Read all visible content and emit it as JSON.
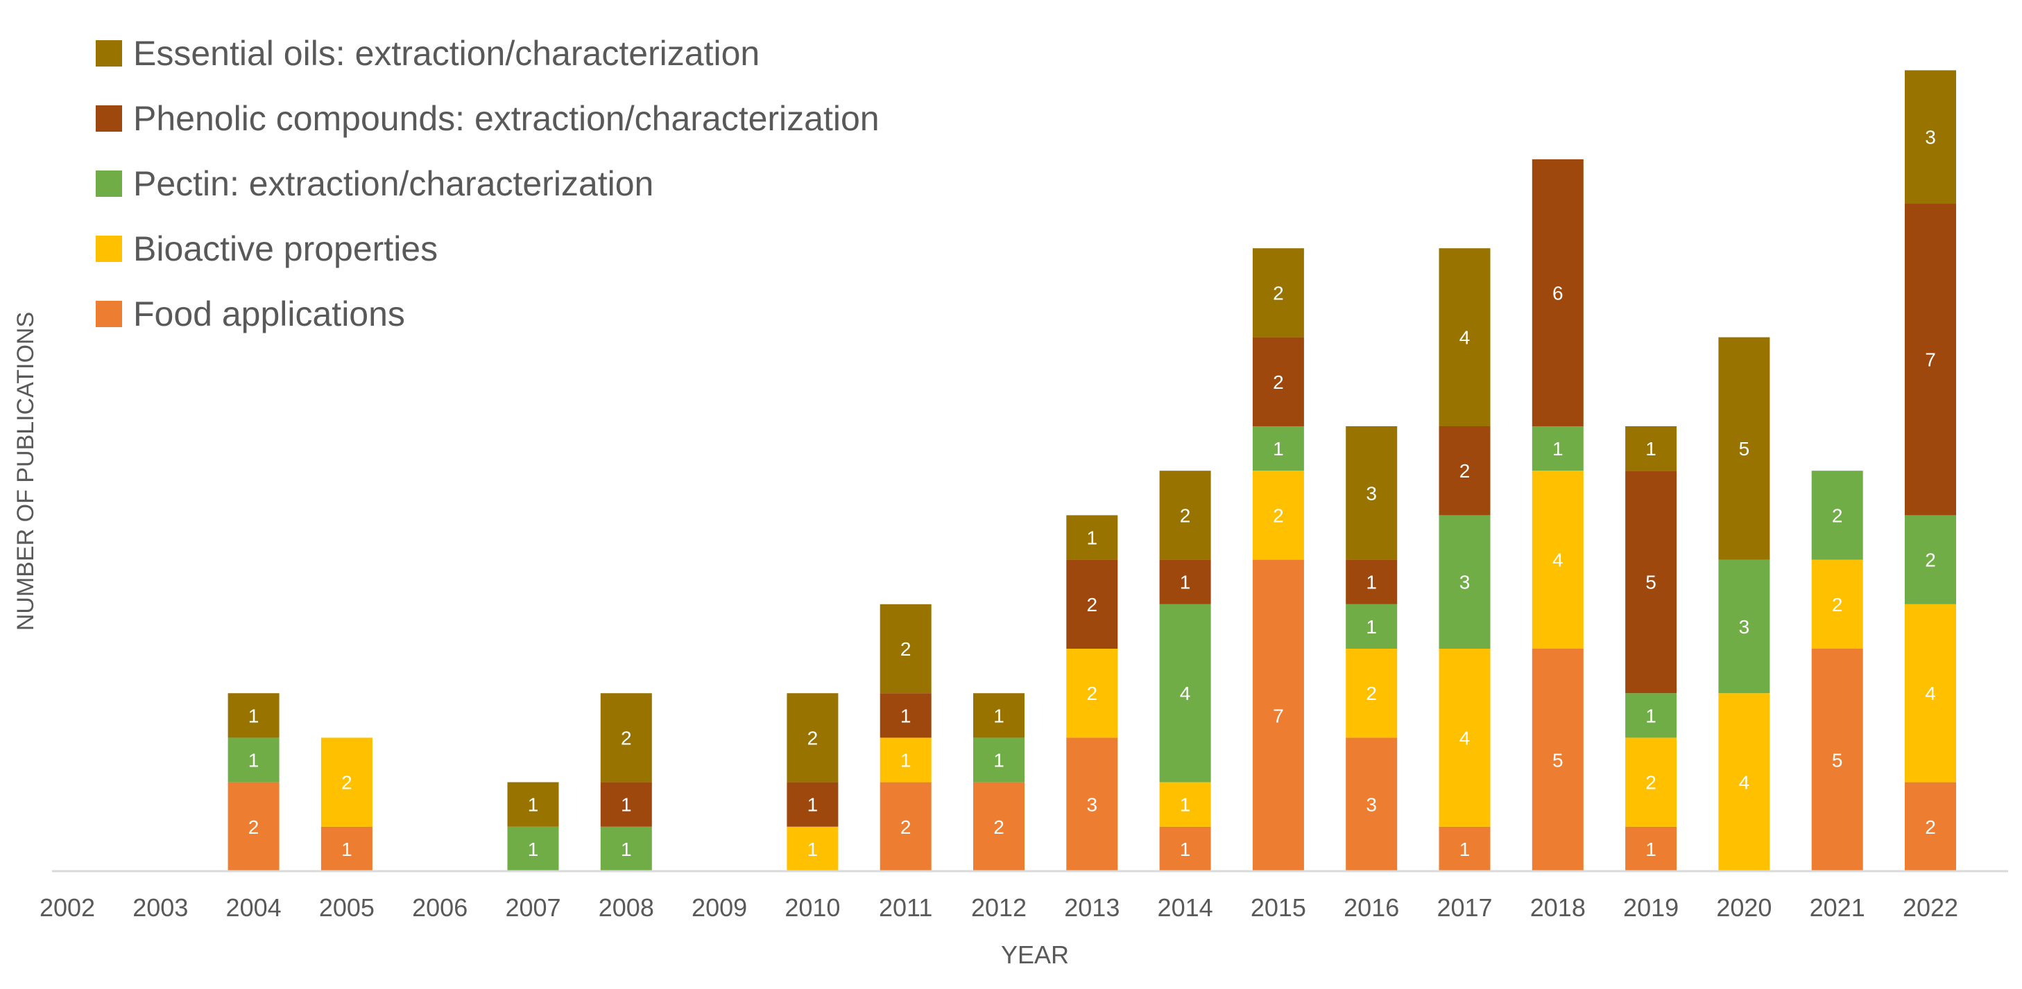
{
  "chart_data": {
    "type": "bar",
    "stacked": true,
    "xlabel": "YEAR",
    "ylabel": "NUMBER OF PUBLICATIONS",
    "ylim": [
      0,
      18
    ],
    "grid": false,
    "legend_position": "top-left",
    "categories": [
      "2002",
      "2003",
      "2004",
      "2005",
      "2006",
      "2007",
      "2008",
      "2009",
      "2010",
      "2011",
      "2012",
      "2013",
      "2014",
      "2015",
      "2016",
      "2017",
      "2018",
      "2019",
      "2020",
      "2021",
      "2022"
    ],
    "series": [
      {
        "name": "Food applications",
        "color": "#ED7D31",
        "values": [
          0,
          0,
          2,
          1,
          0,
          0,
          0,
          0,
          0,
          2,
          2,
          3,
          1,
          7,
          3,
          1,
          5,
          1,
          0,
          5,
          2
        ]
      },
      {
        "name": "Bioactive properties",
        "color": "#FFC000",
        "values": [
          0,
          0,
          0,
          2,
          0,
          0,
          0,
          0,
          1,
          1,
          0,
          2,
          1,
          2,
          2,
          4,
          4,
          2,
          4,
          2,
          4
        ]
      },
      {
        "name": "Pectin: extraction/characterization",
        "color": "#70AD47",
        "values": [
          0,
          0,
          1,
          0,
          0,
          1,
          1,
          0,
          0,
          0,
          1,
          0,
          4,
          1,
          1,
          3,
          1,
          1,
          3,
          2,
          2
        ]
      },
      {
        "name": "Phenolic compounds: extraction/characterization",
        "color": "#9E480E",
        "values": [
          0,
          0,
          0,
          0,
          0,
          0,
          1,
          0,
          1,
          1,
          0,
          2,
          1,
          2,
          1,
          2,
          6,
          5,
          0,
          0,
          7
        ]
      },
      {
        "name": "Essential oils: extraction/characterization",
        "color": "#997300",
        "values": [
          0,
          0,
          1,
          0,
          0,
          1,
          2,
          0,
          2,
          2,
          1,
          1,
          2,
          2,
          3,
          4,
          0,
          1,
          5,
          0,
          3
        ]
      }
    ]
  }
}
